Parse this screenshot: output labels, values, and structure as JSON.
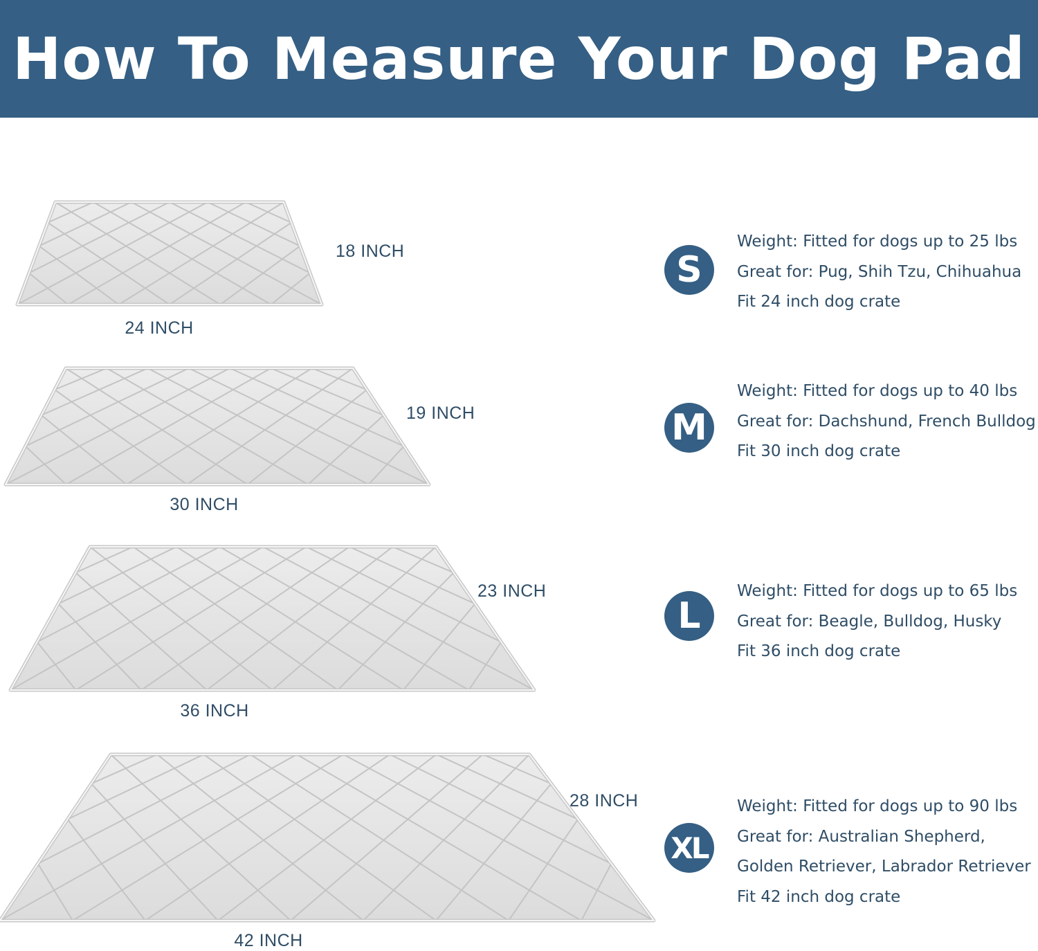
{
  "header": {
    "title": "How To Measure Your Dog Pad"
  },
  "colors": {
    "brand": "#355f84",
    "text": "#2f4d66",
    "pad": "#e4e4e4"
  },
  "sizes": [
    {
      "badge": "S",
      "width_label": "24 INCH",
      "depth_label": "18 INCH",
      "lines": [
        "Weight: Fitted for dogs up to 25 lbs",
        "Great for: Pug, Shih Tzu, Chihuahua",
        "Fit 24 inch dog crate"
      ]
    },
    {
      "badge": "M",
      "width_label": "30 INCH",
      "depth_label": "19 INCH",
      "lines": [
        "Weight: Fitted for dogs up to 40 lbs",
        "Great for: Dachshund, French Bulldog",
        "Fit 30 inch dog crate"
      ]
    },
    {
      "badge": "L",
      "width_label": "36 INCH",
      "depth_label": "23 INCH",
      "lines": [
        "Weight: Fitted for dogs up to 65 lbs",
        "Great for: Beagle, Bulldog, Husky",
        "Fit 36 inch dog crate"
      ]
    },
    {
      "badge": "XL",
      "width_label": "42 INCH",
      "depth_label": "28 INCH",
      "lines": [
        "Weight: Fitted for dogs up to 90 lbs",
        "Great for: Australian Shepherd,",
        "Golden Retriever, Labrador Retriever",
        "Fit 42 inch dog crate"
      ]
    }
  ]
}
